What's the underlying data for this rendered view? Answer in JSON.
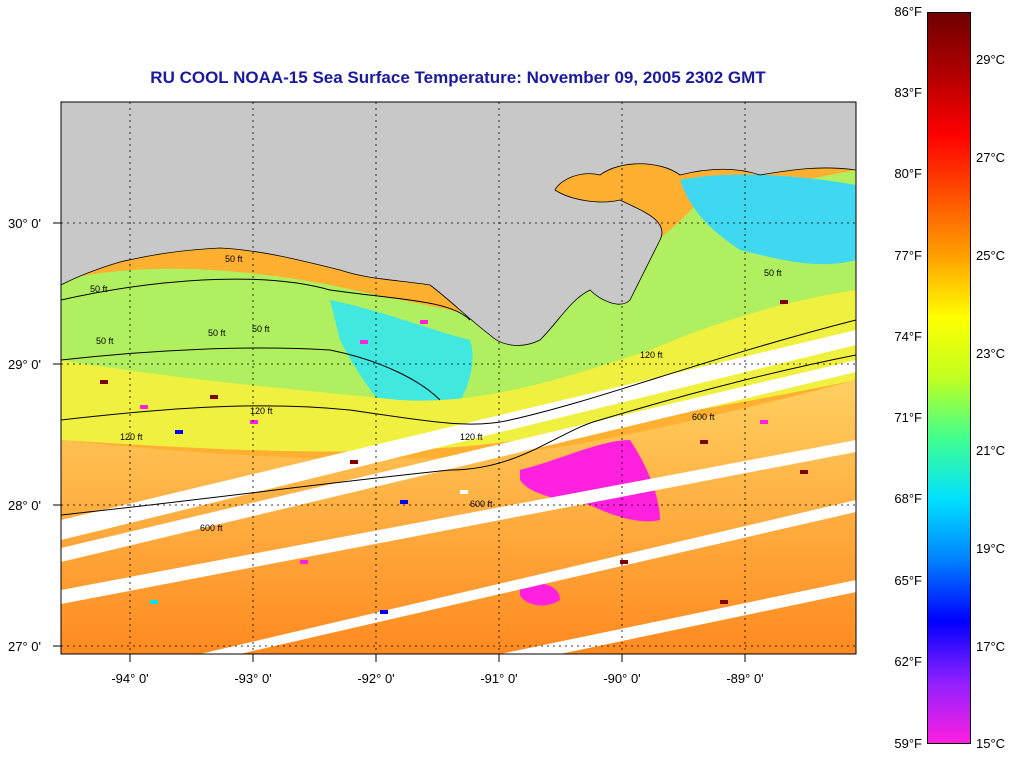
{
  "title": "RU COOL  NOAA-15  Sea Surface Temperature:  November 09, 2005 2302 GMT",
  "map": {
    "lat_labels": [
      "30° 0'",
      "29° 0'",
      "28° 0'",
      "27° 0'"
    ],
    "lon_labels": [
      "-94° 0'",
      "-93° 0'",
      "-92° 0'",
      "-91° 0'",
      "-90° 0'",
      "-89° 0'"
    ],
    "land_color": "#c8c8c8",
    "contour_labels": [
      "50 ft",
      "50 ft",
      "50 ft",
      "50 ft",
      "50 ft",
      "50 ft",
      "120 ft",
      "120 ft",
      "120 ft",
      "120 ft",
      "600 ft",
      "600 ft",
      "600 ft"
    ]
  },
  "colorbar": {
    "fahrenheit_labels": [
      "86°F",
      "83°F",
      "80°F",
      "77°F",
      "74°F",
      "71°F",
      "68°F",
      "65°F",
      "62°F",
      "59°F"
    ],
    "celsius_labels": [
      "29°C",
      "27°C",
      "25°C",
      "23°C",
      "21°C",
      "19°C",
      "17°C",
      "15°C"
    ],
    "colors": [
      "#ff20e0",
      "#9020ff",
      "#0000ff",
      "#0080ff",
      "#00e0ff",
      "#40ff90",
      "#c0ff20",
      "#ffff00",
      "#ffa000",
      "#ff5000",
      "#ff0000",
      "#b00000",
      "#700000"
    ]
  }
}
